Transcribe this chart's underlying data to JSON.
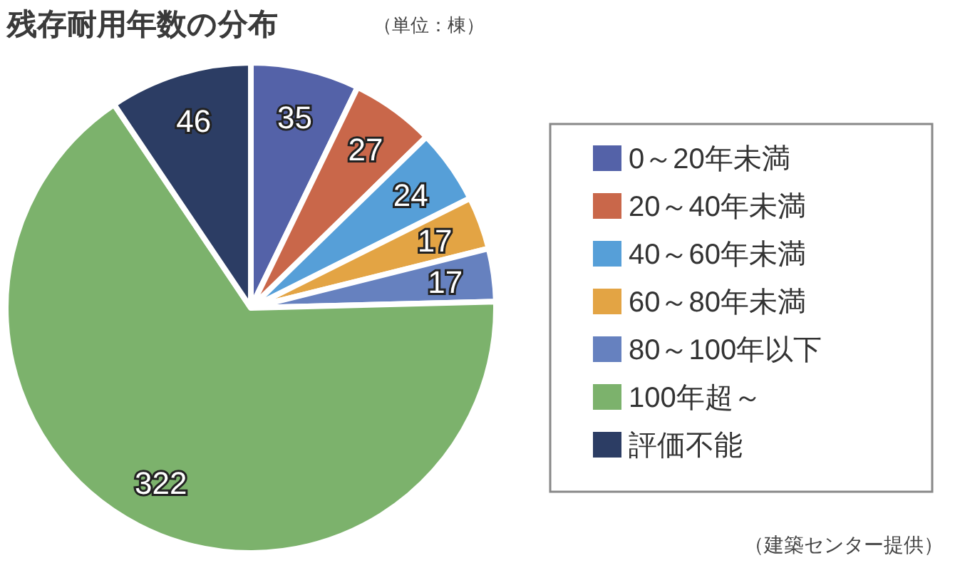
{
  "chart_data": {
    "type": "pie",
    "title": "残存耐用年数の分布",
    "subtitle": "（単位：棟）",
    "categories": [
      "0～20年未満",
      "20～40年未満",
      "40～60年未満",
      "60～80年未満",
      "80～100年以下",
      "100年超～",
      "評価不能"
    ],
    "values": [
      35,
      27,
      24,
      17,
      17,
      322,
      46
    ],
    "colors": [
      "#5462a8",
      "#c9674a",
      "#569fd8",
      "#e3a444",
      "#6681bf",
      "#7cb26c",
      "#2c3d64"
    ],
    "data_labels": true,
    "legend": "right",
    "annotations": [
      "（建築センター提供）"
    ]
  }
}
